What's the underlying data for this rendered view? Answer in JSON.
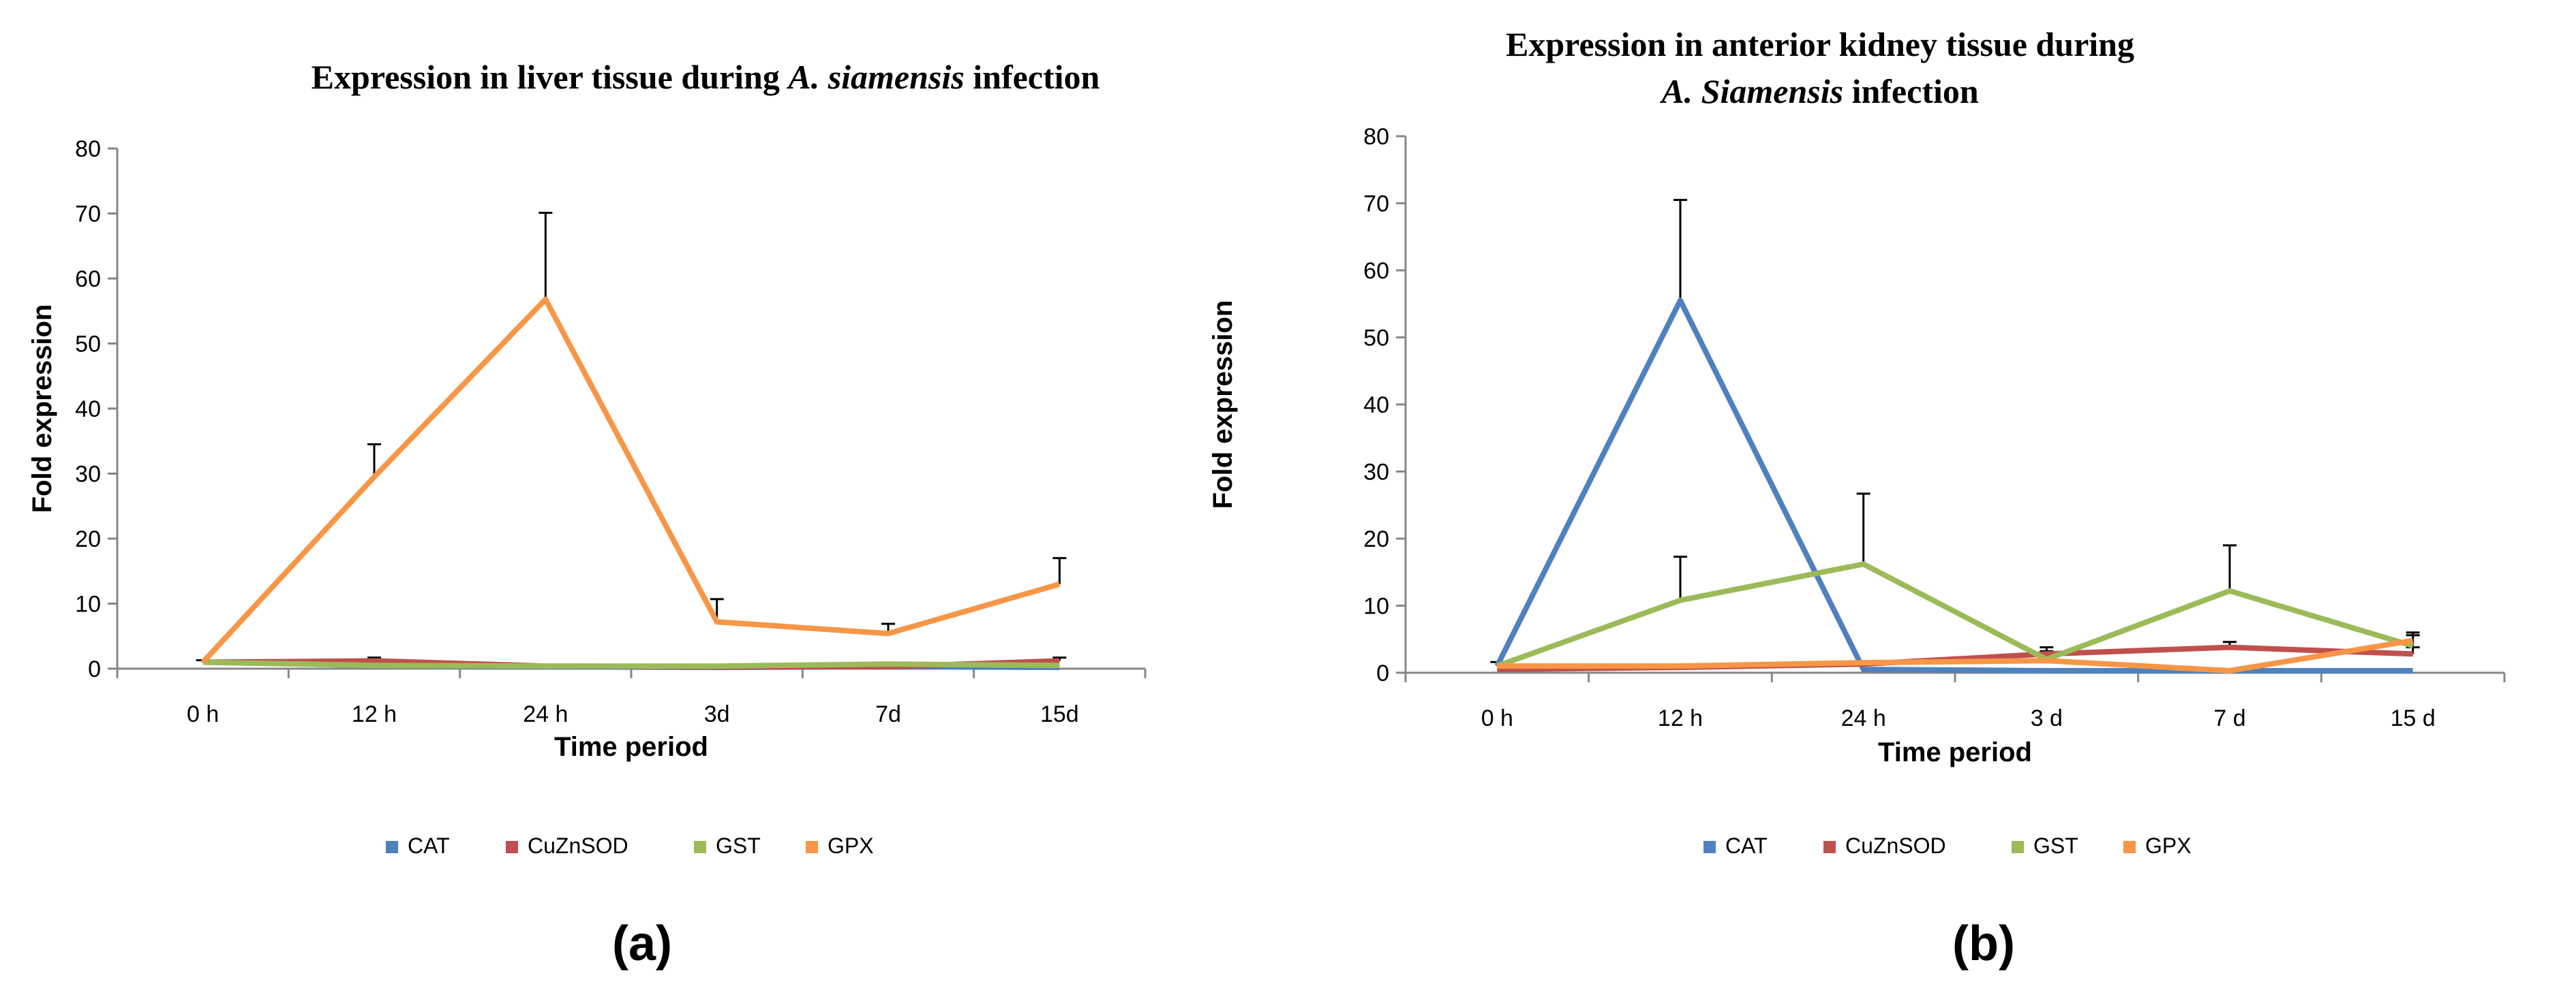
{
  "series_colors": {
    "CAT": "#4f81bd",
    "CuZnSOD": "#c0504d",
    "GST": "#9bbb59",
    "GPX": "#f79646"
  },
  "chart_data": [
    {
      "type": "line",
      "panel_label": "(a)",
      "title_parts": [
        {
          "text": "Expression in liver tissue during ",
          "italic": false
        },
        {
          "text": "A. siamensis",
          "italic": true
        },
        {
          "text": " infection",
          "italic": false
        }
      ],
      "xlabel": "Time period",
      "ylabel": "Fold expression",
      "categories": [
        "0 h",
        "12 h",
        "24 h",
        "3d",
        "7d",
        "15d"
      ],
      "ylim": [
        0,
        80
      ],
      "yticks": [
        0,
        10,
        20,
        30,
        40,
        50,
        60,
        70,
        80
      ],
      "legend_position": "bottom",
      "series": [
        {
          "name": "CAT",
          "values": [
            1.0,
            0.5,
            0.3,
            0.2,
            0.3,
            0.2
          ],
          "errors": [
            0,
            0,
            0,
            0,
            0,
            0
          ]
        },
        {
          "name": "CuZnSOD",
          "values": [
            1.0,
            1.2,
            0.4,
            0.3,
            0.3,
            1.2
          ],
          "errors": [
            0.3,
            0.5,
            0,
            0,
            0,
            0.5
          ]
        },
        {
          "name": "GST",
          "values": [
            1.0,
            0.5,
            0.4,
            0.4,
            0.7,
            0.5
          ],
          "errors": [
            0,
            0,
            0,
            0,
            0,
            0
          ]
        },
        {
          "name": "GPX",
          "values": [
            1.0,
            29.5,
            56.8,
            7.2,
            5.4,
            13.0
          ],
          "errors": [
            0,
            5.0,
            13.3,
            3.5,
            1.5,
            4.0
          ]
        }
      ]
    },
    {
      "type": "line",
      "panel_label": "(b)",
      "title_parts": [
        {
          "text": "Expression in anterior kidney tissue during",
          "italic": false,
          "line": 1
        },
        {
          "text": "A. Siamensis",
          "italic": true,
          "line": 2
        },
        {
          "text": " infection",
          "italic": false,
          "line": 2
        }
      ],
      "xlabel": "Time period",
      "ylabel": "Fold expression",
      "categories": [
        "0 h",
        "12 h",
        "24 h",
        "3 d",
        "7 d",
        "15 d"
      ],
      "ylim": [
        0,
        80
      ],
      "yticks": [
        0,
        10,
        20,
        30,
        40,
        50,
        60,
        70,
        80
      ],
      "legend_position": "bottom",
      "series": [
        {
          "name": "CAT",
          "values": [
            1.0,
            55.5,
            0.5,
            0.3,
            0.3,
            0.3
          ],
          "errors": [
            0.6,
            15.0,
            0,
            0,
            0,
            0
          ]
        },
        {
          "name": "CuZnSOD",
          "values": [
            0.5,
            0.8,
            1.3,
            2.8,
            3.8,
            2.8
          ],
          "errors": [
            0,
            0,
            0,
            1.0,
            0.8,
            1.0
          ]
        },
        {
          "name": "GST",
          "values": [
            1.0,
            10.8,
            16.2,
            2.0,
            12.2,
            4.0
          ],
          "errors": [
            0,
            6.5,
            10.5,
            1.2,
            6.8,
            2.0
          ]
        },
        {
          "name": "GPX",
          "values": [
            1.0,
            1.0,
            1.5,
            1.8,
            0.3,
            4.8
          ],
          "errors": [
            0,
            0,
            0,
            0,
            0,
            0.8
          ]
        }
      ]
    }
  ]
}
